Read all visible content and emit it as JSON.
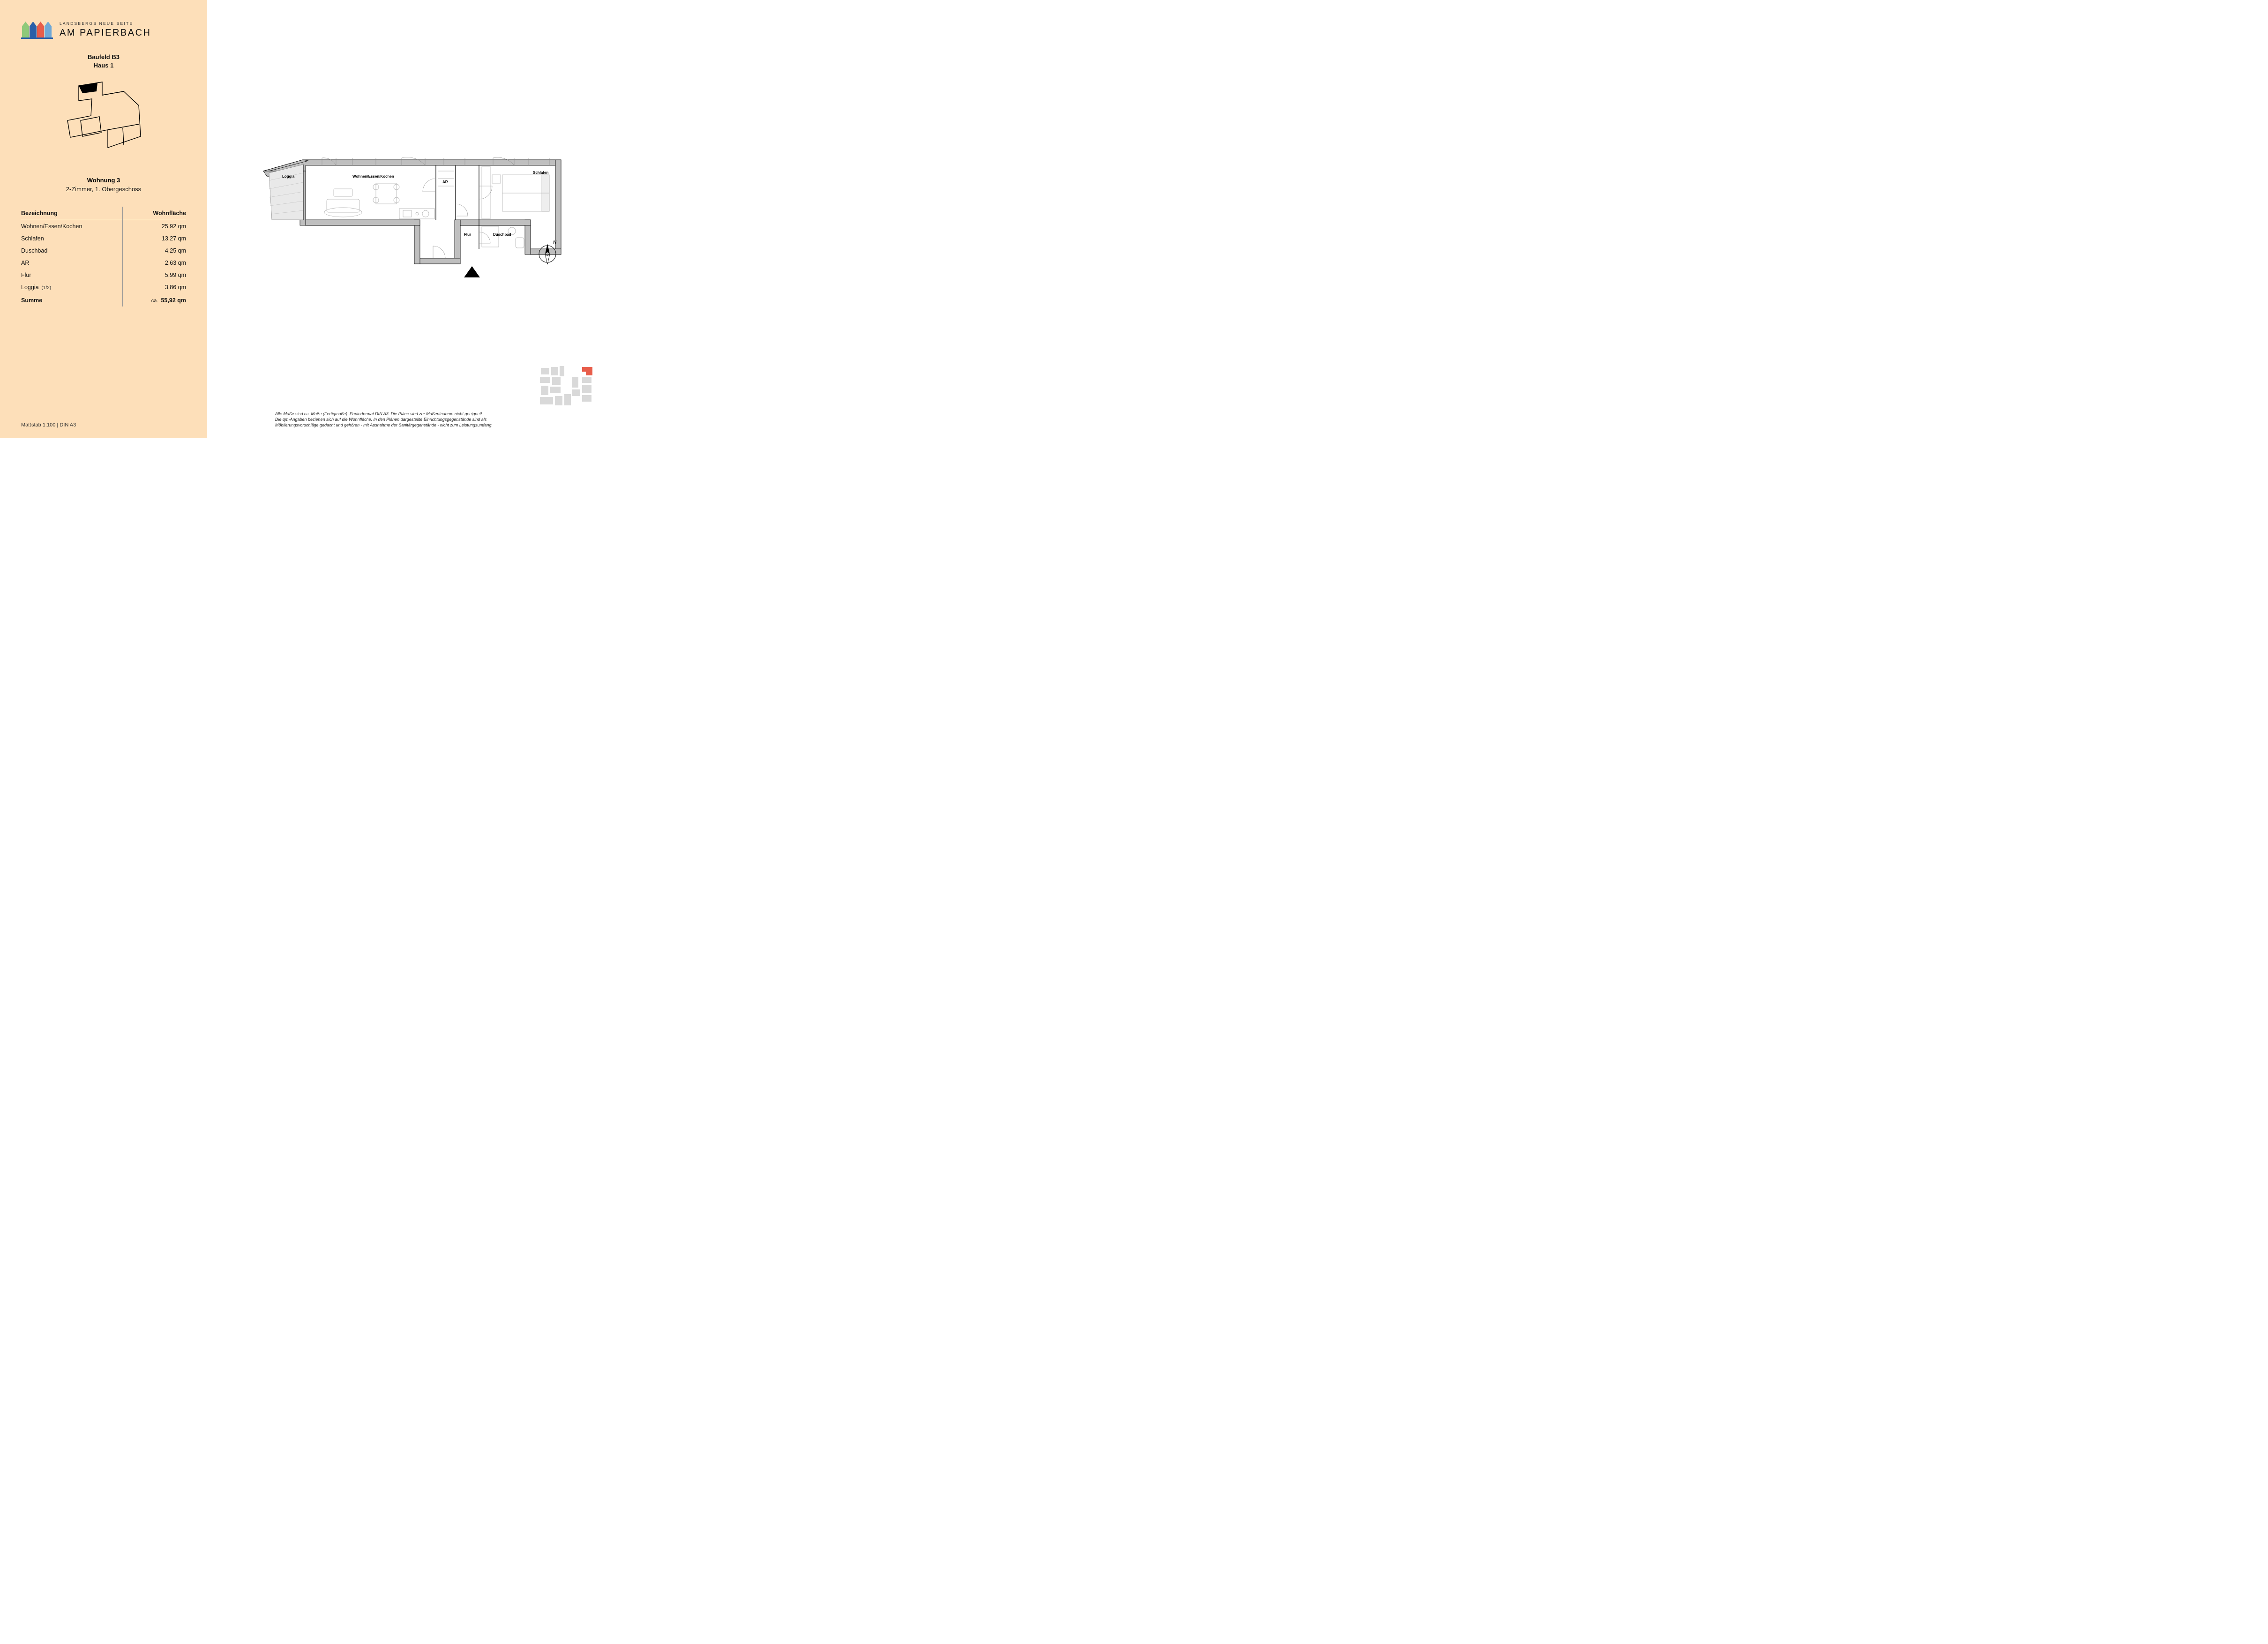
{
  "logo": {
    "subtitle": "LANDSBERGS NEUE SEITE",
    "title": "AM PAPIERBACH",
    "house_colors": [
      "#8fc97a",
      "#2a5fa8",
      "#e85d4a",
      "#6fa8d6"
    ]
  },
  "sidebar_bg": "#fddfb9",
  "meta": {
    "line1": "Baufeld B3",
    "line2": "Haus 1"
  },
  "unit": {
    "name": "Wohnung 3",
    "desc": "2-Zimmer, 1. Obergeschoss"
  },
  "table": {
    "col1": "Bezeichnung",
    "col2": "Wohnfläche",
    "rows": [
      {
        "label": "Wohnen/Essen/Kochen",
        "note": "",
        "value": "25,92 qm"
      },
      {
        "label": "Schlafen",
        "note": "",
        "value": "13,27 qm"
      },
      {
        "label": "Duschbad",
        "note": "",
        "value": "4,25 qm"
      },
      {
        "label": "AR",
        "note": "",
        "value": "2,63 qm"
      },
      {
        "label": "Flur",
        "note": "",
        "value": "5,99 qm"
      },
      {
        "label": "Loggia",
        "note": "(1/2)",
        "value": "3,86 qm"
      }
    ],
    "sum_label": "Summe",
    "sum_prefix": "ca.",
    "sum_value": "55,92 qm"
  },
  "scale": "Maßstab 1:100 | DIN A3",
  "floorplan": {
    "wall_fill": "#bfbfbf",
    "wall_stroke": "#000000",
    "loggia_fill": "#e9e9e9",
    "labels": {
      "loggia": "Loggia",
      "wohnen": "Wohnen/Essen/Kochen",
      "ar": "AR",
      "schlafen": "Schlafen",
      "flur": "Flur",
      "duschbad": "Duschbad"
    }
  },
  "compass": {
    "n_label": "N"
  },
  "disclaimer": {
    "l1": "Alle Maße sind ca. Maße (Fertigmaße). Papierformat DIN A3. Die Pläne sind zur Maßentnahme nicht geeignet!",
    "l2": "Die qm-Angaben beziehen sich auf die Wohnfläche. In den Plänen dargestellte Einrichtungsgegenstände sind als",
    "l3": "Möblierungsvorschläge gedacht und gehören - mit Ausnahme der Sanitärgegenstände - nicht zum Leistungsumfang."
  },
  "sitemap_highlight": "#e85d4a"
}
